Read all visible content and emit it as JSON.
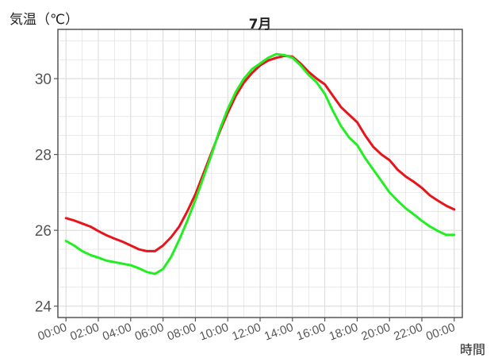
{
  "chart_data": {
    "type": "line",
    "title": "7月",
    "ylabel": "気温（℃）",
    "xlabel": "時間",
    "ylim": [
      23.7,
      31.3
    ],
    "xlim": [
      -0.5,
      24.5
    ],
    "yticks": [
      24,
      26,
      28,
      30
    ],
    "x_ticks": [
      0,
      2,
      4,
      6,
      8,
      10,
      12,
      14,
      16,
      18,
      20,
      22,
      24
    ],
    "x_tick_labels": [
      "00:00",
      "02:00",
      "04:00",
      "06:00",
      "08:00",
      "10:00",
      "12:00",
      "14:00",
      "16:00",
      "18:00",
      "20:00",
      "22:00",
      "00:00"
    ],
    "grid": true,
    "colors": {
      "series_red": "#e8141c",
      "series_green": "#22ee22",
      "grid": "#dcdcdc",
      "frame": "#555555"
    },
    "x": [
      0,
      0.5,
      1,
      1.5,
      2,
      2.5,
      3,
      3.5,
      4,
      4.5,
      5,
      5.5,
      6,
      6.5,
      7,
      7.5,
      8,
      8.5,
      9,
      9.5,
      10,
      10.5,
      11,
      11.5,
      12,
      12.5,
      13,
      13.5,
      14,
      14.5,
      15,
      15.5,
      16,
      16.5,
      17,
      17.5,
      18,
      18.5,
      19,
      19.5,
      20,
      20.5,
      21,
      21.5,
      22,
      22.5,
      23,
      23.5,
      24
    ],
    "series": [
      {
        "values": [
          26.32,
          26.26,
          26.18,
          26.1,
          25.98,
          25.87,
          25.78,
          25.7,
          25.6,
          25.5,
          25.45,
          25.45,
          25.6,
          25.82,
          26.1,
          26.5,
          26.95,
          27.5,
          28.05,
          28.6,
          29.1,
          29.55,
          29.9,
          30.15,
          30.35,
          30.48,
          30.55,
          30.6,
          30.58,
          30.4,
          30.18,
          30.0,
          29.85,
          29.55,
          29.25,
          29.05,
          28.85,
          28.5,
          28.2,
          28.0,
          27.85,
          27.6,
          27.42,
          27.28,
          27.12,
          26.92,
          26.78,
          26.65,
          26.55
        ]
      },
      {
        "values": [
          25.72,
          25.6,
          25.45,
          25.35,
          25.28,
          25.2,
          25.16,
          25.12,
          25.08,
          25.0,
          24.9,
          24.85,
          24.98,
          25.3,
          25.75,
          26.25,
          26.8,
          27.4,
          28.0,
          28.65,
          29.2,
          29.65,
          30.0,
          30.25,
          30.4,
          30.55,
          30.65,
          30.62,
          30.55,
          30.35,
          30.1,
          29.9,
          29.6,
          29.15,
          28.75,
          28.45,
          28.25,
          27.9,
          27.6,
          27.3,
          27.0,
          26.78,
          26.58,
          26.42,
          26.25,
          26.1,
          25.98,
          25.88,
          25.88
        ]
      }
    ]
  }
}
